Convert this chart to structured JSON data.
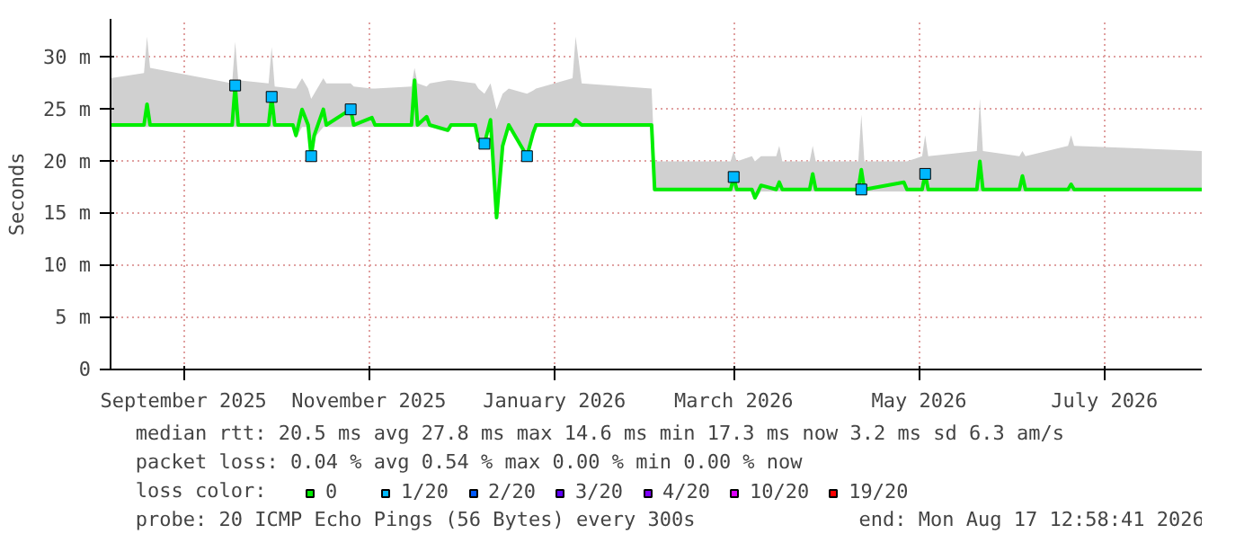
{
  "chart_data": {
    "type": "line",
    "ylabel": "Seconds",
    "xlim": [
      "2025-08-23",
      "2026-08-17"
    ],
    "xticks": [
      {
        "value": "2025-09-16",
        "label": "September 2025"
      },
      {
        "value": "2025-11-16",
        "label": "November 2025"
      },
      {
        "value": "2026-01-16",
        "label": "January 2026"
      },
      {
        "value": "2026-03-16",
        "label": "March 2026"
      },
      {
        "value": "2026-05-16",
        "label": "May 2026"
      },
      {
        "value": "2026-07-16",
        "label": "July 2026"
      }
    ],
    "ylim": [
      0,
      33.7
    ],
    "yticks": [
      0,
      {
        "value": 5,
        "label": "5 m"
      },
      {
        "value": 10,
        "label": "10 m"
      },
      {
        "value": 15,
        "label": "15 m"
      },
      {
        "value": 20,
        "label": "20 m"
      },
      {
        "value": 25,
        "label": "25 m"
      },
      {
        "value": 30,
        "label": "30 m"
      }
    ],
    "grid": true,
    "legend": "bottom",
    "legend_title": "loss color:",
    "series": [
      {
        "name": "0",
        "color": "#00ee00",
        "x": [
          "2025-08-23",
          "2025-09-03",
          "2025-09-04",
          "2025-09-05",
          "2025-10-02",
          "2025-10-03",
          "2025-10-04",
          "2025-10-14",
          "2025-10-15",
          "2025-10-16",
          "2025-10-22",
          "2025-10-23",
          "2025-10-25",
          "2025-10-27",
          "2025-10-28",
          "2025-10-29",
          "2025-11-01",
          "2025-11-02",
          "2025-11-10",
          "2025-11-11",
          "2025-11-17",
          "2025-11-18",
          "2025-11-30",
          "2025-12-01",
          "2025-12-02",
          "2025-12-05",
          "2025-12-06",
          "2025-12-12",
          "2025-12-13",
          "2025-12-21",
          "2025-12-22",
          "2025-12-24",
          "2025-12-26",
          "2025-12-28",
          "2025-12-30",
          "2026-01-01",
          "2026-01-07",
          "2026-01-09",
          "2026-01-10",
          "2026-01-22",
          "2026-01-23",
          "2026-01-25",
          "2026-02-17",
          "2026-02-18",
          "2026-03-15",
          "2026-03-16",
          "2026-03-17",
          "2026-03-22",
          "2026-03-23",
          "2026-03-25",
          "2026-03-30",
          "2026-03-31",
          "2026-04-01",
          "2026-04-10",
          "2026-04-11",
          "2026-04-12",
          "2026-04-26",
          "2026-04-27",
          "2026-04-28",
          "2026-05-11",
          "2026-05-12",
          "2026-05-17",
          "2026-05-18",
          "2026-05-19",
          "2026-06-04",
          "2026-06-05",
          "2026-06-06",
          "2026-06-18",
          "2026-06-19",
          "2026-06-20",
          "2026-07-04",
          "2026-07-05",
          "2026-07-06",
          "2026-08-17"
        ],
        "values": [
          23.5,
          23.5,
          25.5,
          23.5,
          23.5,
          27.3,
          23.5,
          23.5,
          26.2,
          23.5,
          23.5,
          22.5,
          25,
          23.5,
          20.5,
          22.5,
          25,
          23.5,
          25,
          23.5,
          24.2,
          23.5,
          23.5,
          27.8,
          23.5,
          24.3,
          23.5,
          23,
          23.5,
          23.5,
          22,
          21.7,
          24,
          14.6,
          21.5,
          23.5,
          20.5,
          22.7,
          23.5,
          23.5,
          24,
          23.5,
          23.5,
          17.3,
          17.3,
          18.5,
          17.3,
          17.3,
          16.5,
          17.7,
          17.3,
          18,
          17.3,
          17.3,
          18.8,
          17.3,
          17.3,
          19.2,
          17.3,
          18,
          17.3,
          17.3,
          18.8,
          17.3,
          17.3,
          20,
          17.3,
          17.3,
          18.6,
          17.3,
          17.3,
          17.8,
          17.3,
          17.3
        ],
        "lower": [
          23.3,
          23.3,
          23.3,
          23.3,
          23.3,
          23.3,
          23.3,
          23.3,
          23.3,
          23.3,
          23.3,
          22.2,
          23.3,
          23.3,
          20.3,
          22.2,
          23.3,
          23.3,
          23.3,
          23.3,
          23.3,
          23.3,
          23.3,
          23.3,
          23.3,
          23.3,
          23.3,
          22.8,
          23.3,
          23.3,
          21.8,
          21.5,
          23.3,
          14.4,
          21.3,
          23.3,
          20.3,
          22.5,
          23.3,
          23.3,
          23.3,
          23.3,
          23.3,
          17.1,
          17.1,
          17.1,
          17.1,
          17.1,
          16.3,
          17.1,
          17.1,
          17.1,
          17.1,
          17.1,
          17.1,
          17.1,
          17.1,
          17.1,
          17.1,
          17.1,
          17.1,
          17.1,
          17.1,
          17.1,
          17.1,
          17.1,
          17.1,
          17.1,
          17.1,
          17.1,
          17.1,
          17.1,
          17.1,
          17.1
        ],
        "upper": [
          28,
          28.5,
          32,
          29,
          27.5,
          31.5,
          27.8,
          27.5,
          31,
          27.2,
          27,
          27,
          28,
          27,
          26,
          26.5,
          28,
          27.5,
          27.5,
          27.2,
          27,
          27,
          27.2,
          29,
          27.5,
          27.2,
          27.5,
          27.8,
          27.8,
          27.5,
          27,
          26.5,
          27.5,
          25,
          26.5,
          27,
          26.5,
          26.8,
          27,
          28,
          32,
          27.5,
          27,
          20,
          20,
          21,
          20,
          20.5,
          20,
          20.5,
          20.5,
          21.5,
          20,
          20,
          21.5,
          20,
          20,
          24.5,
          20,
          20,
          20,
          20.5,
          22.5,
          20.5,
          21,
          26,
          21,
          20.5,
          21,
          20.5,
          21.5,
          22.5,
          21.5,
          21
        ]
      },
      {
        "name": "1/20",
        "color": "#00b8ff",
        "type": "scatter",
        "marker": "square",
        "x": [
          "2025-10-03",
          "2025-10-15",
          "2025-10-28",
          "2025-11-10",
          "2025-12-24",
          "2026-01-07",
          "2026-03-16",
          "2026-04-27",
          "2026-05-18"
        ],
        "values": [
          27.3,
          26.2,
          20.5,
          25,
          21.7,
          20.5,
          18.5,
          17.3,
          18.8
        ]
      },
      {
        "name": "2/20",
        "color": "#0059ff",
        "type": "scatter",
        "marker": "square"
      },
      {
        "name": "3/20",
        "color": "#5e00ff",
        "type": "scatter",
        "marker": "square"
      },
      {
        "name": "4/20",
        "color": "#7e00ff",
        "type": "scatter",
        "marker": "square"
      },
      {
        "name": "10/20",
        "color": "#dd00ff",
        "type": "scatter",
        "marker": "square"
      },
      {
        "name": "19/20",
        "color": "#ff0000",
        "type": "scatter",
        "marker": "square"
      }
    ],
    "annotations": [
      "median rtt:  20.5 ms avg  27.8 ms max  14.6 ms min  17.3 ms now  3.2 ms sd  6.3   am/s",
      "packet loss: 0.04 % avg  0.54 % max  0.00 % min  0.00 % now",
      "probe:       20 ICMP Echo Pings (56 Bytes) every 300s",
      "end: Mon Aug 17 12:58:41 2026"
    ]
  }
}
